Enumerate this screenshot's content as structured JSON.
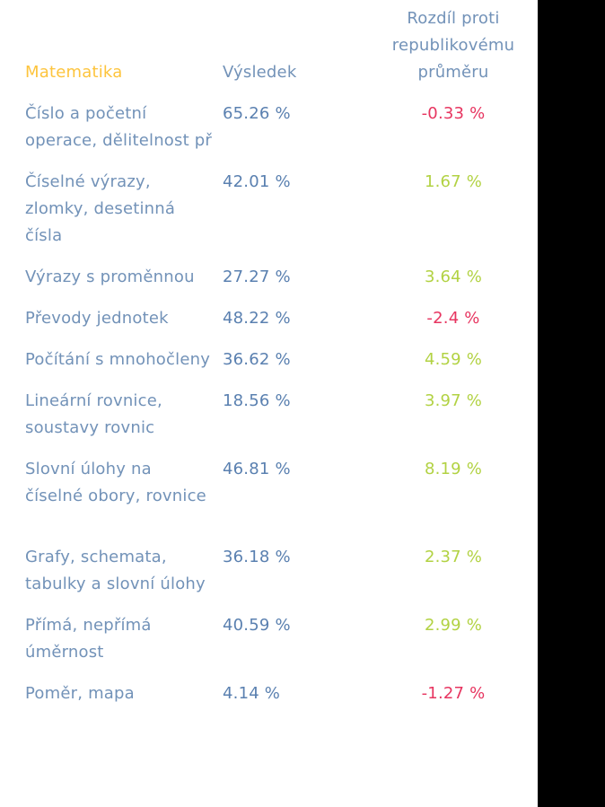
{
  "colors": {
    "accent_yellow": "#FDC43D",
    "text_blue": "#7292B8",
    "value_blue": "#5A80B0",
    "negative_red": "#E73560",
    "positive_green": "#B2D243",
    "strip_black": "#000000",
    "background": "#FFFFFF"
  },
  "table": {
    "headers": {
      "col1": "Matematika",
      "col2": "Výsledek",
      "col3": "Rozdíl proti republikovému průměru"
    },
    "rows": [
      {
        "topic": "Číslo a početní operace, dělitelnost př",
        "result": "65.26 %",
        "diff": "-0.33 %",
        "diff_sign": "negative"
      },
      {
        "topic": "Číselné výrazy, zlomky, desetinná čísla",
        "result": "42.01 %",
        "diff": "1.67 %",
        "diff_sign": "positive"
      },
      {
        "topic": "Výrazy s proměnnou",
        "result": "27.27 %",
        "diff": "3.64 %",
        "diff_sign": "positive"
      },
      {
        "topic": "Převody jednotek",
        "result": "48.22 %",
        "diff": "-2.4 %",
        "diff_sign": "negative"
      },
      {
        "topic": "Počítání s mnohočleny",
        "result": "36.62 %",
        "diff": "4.59 %",
        "diff_sign": "positive"
      },
      {
        "topic": "Lineární rovnice, soustavy rovnic",
        "result": "18.56 %",
        "diff": "3.97 %",
        "diff_sign": "positive"
      },
      {
        "topic": "Slovní úlohy na číselné obory, rovnice",
        "result": "46.81 %",
        "diff": "8.19 %",
        "diff_sign": "positive"
      },
      {
        "topic": "Grafy, schemata, tabulky a slovní úlohy",
        "result": "36.18 %",
        "diff": "2.37 %",
        "diff_sign": "positive"
      },
      {
        "topic": "Přímá, nepřímá úměrnost",
        "result": "40.59 %",
        "diff": "2.99 %",
        "diff_sign": "positive"
      },
      {
        "topic": "Poměr, mapa",
        "result": "4.14 %",
        "diff": "-1.27 %",
        "diff_sign": "negative"
      }
    ]
  },
  "chart_data": {
    "type": "table",
    "title": "Matematika",
    "columns": [
      "Matematika",
      "Výsledek",
      "Rozdíl proti republikovému průměru"
    ],
    "rows": [
      [
        "Číslo a početní operace, dělitelnost př",
        "65.26 %",
        "-0.33 %"
      ],
      [
        "Číselné výrazy, zlomky, desetinná čísla",
        "42.01 %",
        "1.67 %"
      ],
      [
        "Výrazy s proměnnou",
        "27.27 %",
        "3.64 %"
      ],
      [
        "Převody jednotek",
        "48.22 %",
        "-2.4 %"
      ],
      [
        "Počítání s mnohočleny",
        "36.62 %",
        "4.59 %"
      ],
      [
        "Lineární rovnice, soustavy rovnic",
        "18.56 %",
        "3.97 %"
      ],
      [
        "Slovní úlohy na číselné obory, rovnice",
        "46.81 %",
        "8.19 %"
      ],
      [
        "Grafy, schemata, tabulky a slovní úlohy",
        "36.18 %",
        "2.37 %"
      ],
      [
        "Přímá, nepřímá úměrnost",
        "40.59 %",
        "2.99 %"
      ],
      [
        "Poměr, mapa",
        "4.14 %",
        "-1.27 %"
      ]
    ],
    "result_values_percent": [
      65.26,
      42.01,
      27.27,
      48.22,
      36.62,
      18.56,
      46.81,
      36.18,
      40.59,
      4.14
    ],
    "diff_values_percent": [
      -0.33,
      1.67,
      3.64,
      -2.4,
      4.59,
      3.97,
      8.19,
      2.37,
      2.99,
      -1.27
    ],
    "diff_color_rule": "negative values red (#E73560), positive values green (#B2D243)"
  }
}
